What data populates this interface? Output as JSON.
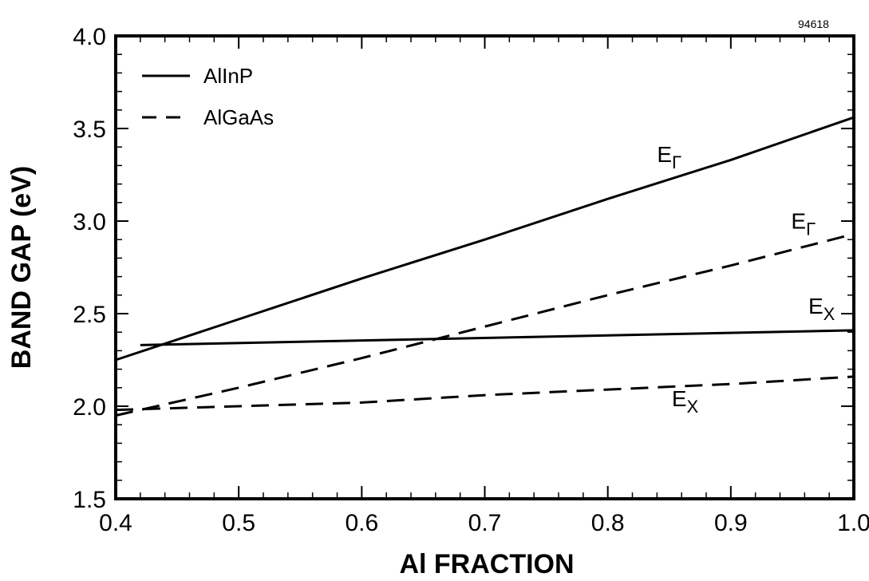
{
  "figure_id": "94618",
  "chart_data": {
    "type": "line",
    "xlabel": "Al FRACTION",
    "ylabel": "BAND GAP (eV)",
    "xlim": [
      0.4,
      1.0
    ],
    "ylim": [
      1.5,
      4.0
    ],
    "xticks": [
      "0.4",
      "0.5",
      "0.6",
      "0.7",
      "0.8",
      "0.9",
      "1.0"
    ],
    "yticks": [
      "1.5",
      "2.0",
      "2.5",
      "3.0",
      "3.5",
      "4.0"
    ],
    "grid": false,
    "legend_position": "top-left",
    "legend": [
      {
        "label": "AlInP",
        "style": "solid"
      },
      {
        "label": "AlGaAs",
        "style": "dashed"
      }
    ],
    "series": [
      {
        "name": "AlInP",
        "style": "solid",
        "x": [
          0.4,
          0.5,
          0.6,
          0.7,
          0.8,
          0.9,
          1.0
        ],
        "y": [
          2.25,
          2.47,
          2.69,
          2.9,
          3.12,
          3.33,
          3.56
        ]
      },
      {
        "name": "AlInP",
        "style": "solid",
        "x": [
          0.42,
          1.0
        ],
        "y": [
          2.33,
          2.41
        ]
      },
      {
        "name": "AlGaAs",
        "style": "dashed",
        "x": [
          0.4,
          0.5,
          0.6,
          0.7,
          0.8,
          0.9,
          1.0
        ],
        "y": [
          1.95,
          2.1,
          2.26,
          2.43,
          2.6,
          2.76,
          2.93
        ]
      },
      {
        "name": "AlGaAs",
        "style": "dashed",
        "x": [
          0.4,
          0.5,
          0.6,
          0.7,
          0.8,
          0.9,
          1.0
        ],
        "y": [
          1.98,
          2.0,
          2.02,
          2.06,
          2.09,
          2.12,
          2.16
        ]
      }
    ],
    "annotations": [
      {
        "main": "E",
        "sub": "Γ",
        "x": 0.84,
        "y": 3.32
      },
      {
        "main": "E",
        "sub": "Γ",
        "x": 0.949,
        "y": 2.96
      },
      {
        "main": "E",
        "sub": "X",
        "x": 0.963,
        "y": 2.5
      },
      {
        "main": "E",
        "sub": "X",
        "x": 0.852,
        "y": 2.0
      }
    ]
  }
}
